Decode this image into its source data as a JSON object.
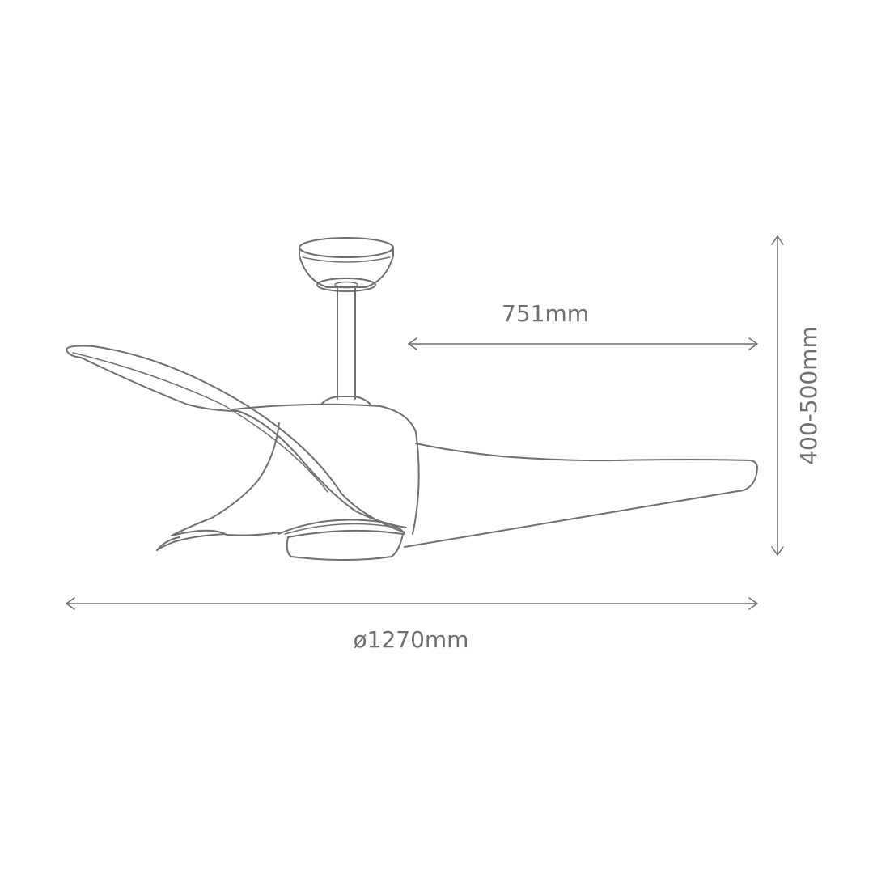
{
  "dimensions": {
    "blade_span": "751mm",
    "height_range": "400-500mm",
    "diameter": "ø1270mm"
  },
  "colors": {
    "line": "#6f6f6f",
    "background": "#ffffff"
  }
}
